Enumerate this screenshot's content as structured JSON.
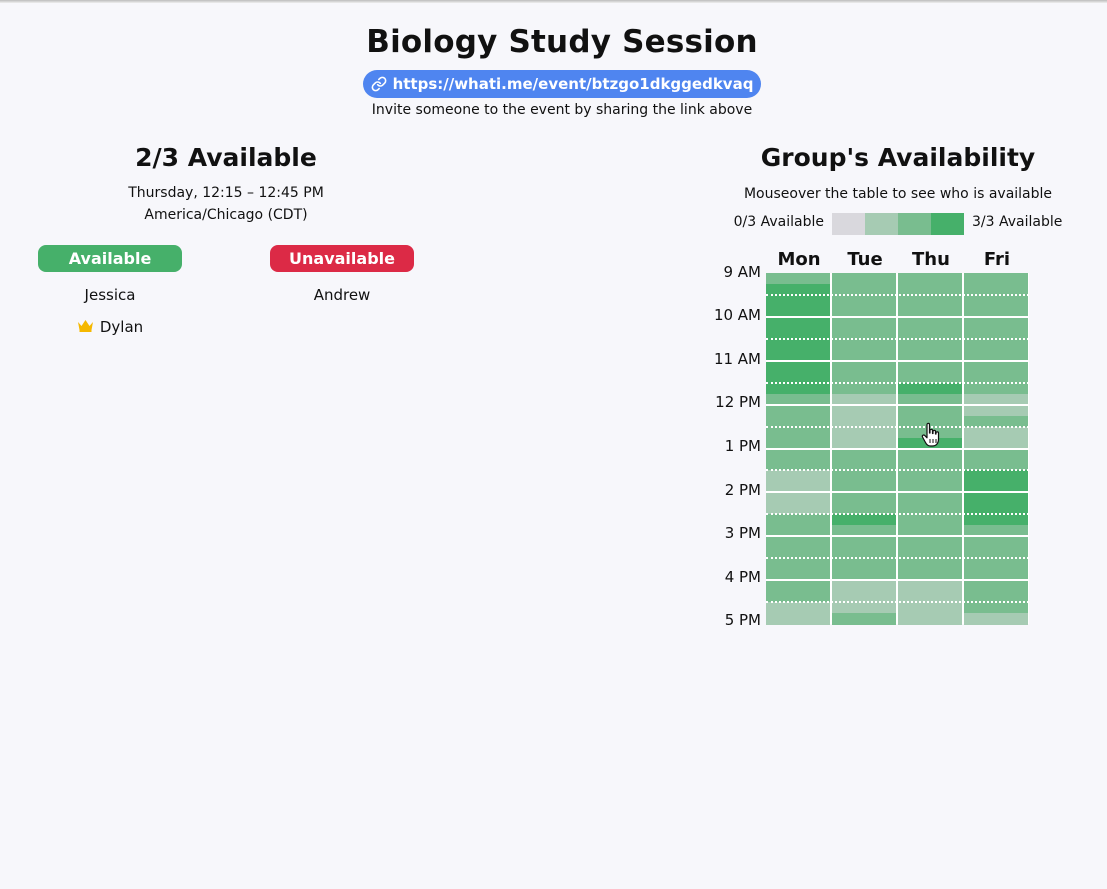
{
  "event": {
    "title": "Biology Study Session",
    "link": "https://whati.me/event/btzgo1dkggedkvaq",
    "invite_text": "Invite someone to the event by sharing the link above"
  },
  "selected_slot": {
    "summary": "2/3 Available",
    "time": "Thursday, 12:15 – 12:45 PM",
    "timezone": "America/Chicago (CDT)",
    "available_label": "Available",
    "unavailable_label": "Unavailable",
    "available": [
      {
        "name": "Jessica",
        "owner": false
      },
      {
        "name": "Dylan",
        "owner": true
      }
    ],
    "unavailable": [
      {
        "name": "Andrew"
      }
    ]
  },
  "group": {
    "title": "Group's Availability",
    "hint": "Mouseover the table to see who is available",
    "legend_min": "0/3 Available",
    "legend_max": "3/3 Available",
    "days": [
      "Mon",
      "Tue",
      "Thu",
      "Fri"
    ],
    "times": [
      "9 AM",
      "10 AM",
      "11 AM",
      "12 PM",
      "1 PM",
      "2 PM",
      "3 PM",
      "4 PM",
      "5 PM"
    ],
    "slot_minutes": 15,
    "start_time": "9:00 AM",
    "end_time": "5:00 PM",
    "total_people": 3,
    "colors": [
      "#d9d8dd",
      "#a6cbb3",
      "#79bd8f",
      "#46b06a"
    ],
    "counts": {
      "Mon": [
        2,
        3,
        3,
        3,
        3,
        3,
        3,
        3,
        3,
        3,
        3,
        2,
        2,
        2,
        2,
        2,
        2,
        2,
        1,
        1,
        1,
        1,
        2,
        2,
        2,
        2,
        2,
        2,
        2,
        2,
        1,
        1
      ],
      "Tue": [
        2,
        2,
        2,
        2,
        2,
        2,
        2,
        2,
        2,
        2,
        2,
        1,
        1,
        1,
        1,
        1,
        2,
        2,
        2,
        2,
        2,
        2,
        3,
        2,
        2,
        2,
        2,
        2,
        1,
        1,
        1,
        2
      ],
      "Thu": [
        2,
        2,
        2,
        2,
        2,
        2,
        2,
        2,
        2,
        2,
        3,
        2,
        2,
        2,
        2,
        3,
        2,
        2,
        2,
        2,
        2,
        2,
        2,
        2,
        2,
        2,
        2,
        2,
        1,
        1,
        1,
        1
      ],
      "Fri": [
        2,
        2,
        2,
        2,
        2,
        2,
        2,
        2,
        2,
        2,
        2,
        1,
        1,
        2,
        1,
        1,
        2,
        2,
        3,
        3,
        3,
        3,
        3,
        2,
        2,
        2,
        2,
        2,
        2,
        2,
        2,
        1
      ]
    }
  }
}
